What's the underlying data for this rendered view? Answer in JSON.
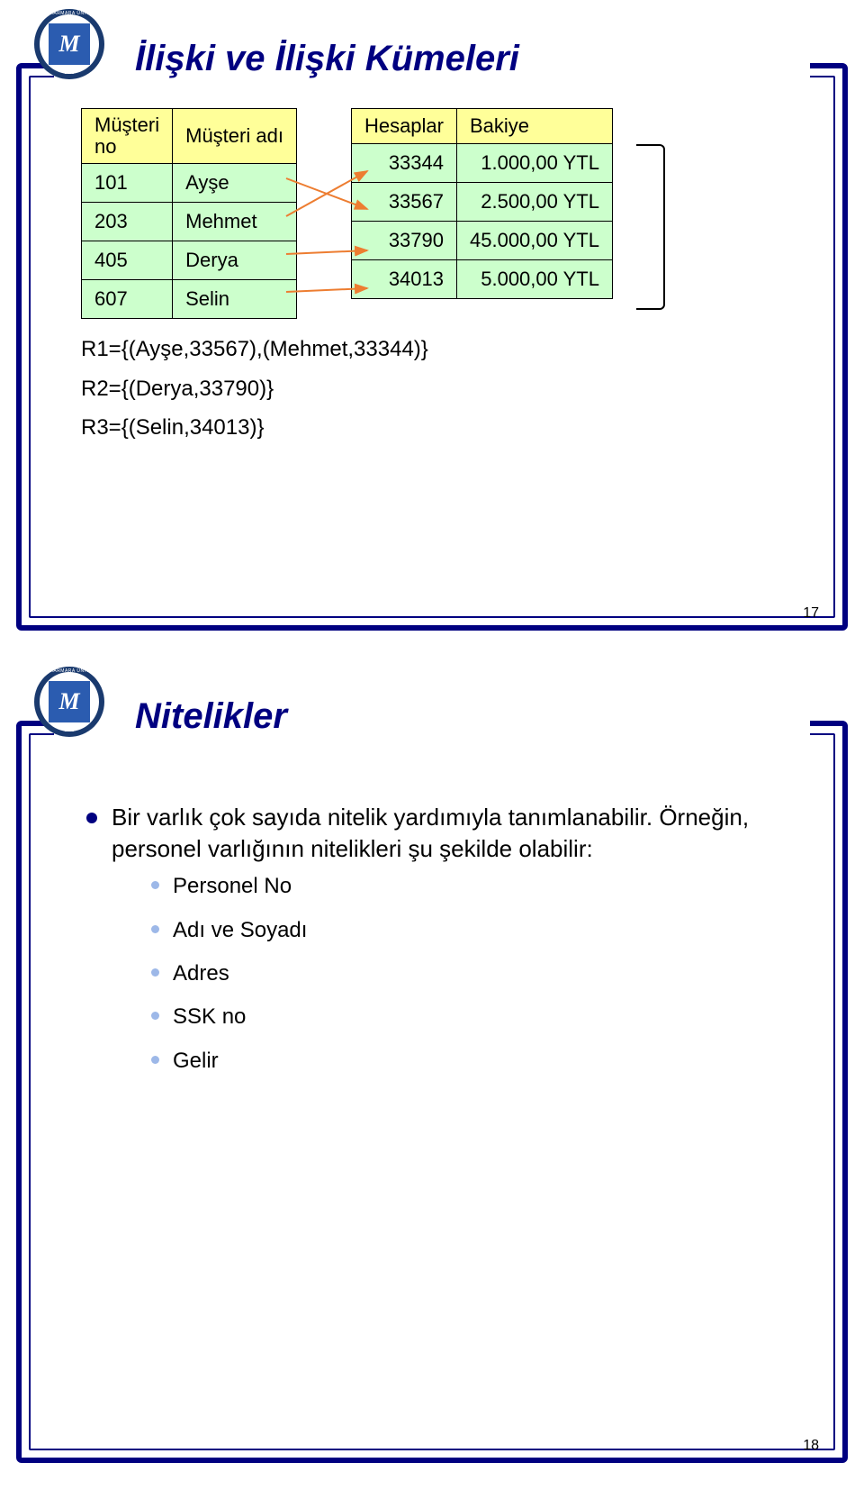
{
  "slide1": {
    "title": "İlişki ve İlişki Kümeleri",
    "page_num": "17",
    "table_left": {
      "headers": [
        "Müşteri\nno",
        "Müşteri adı"
      ],
      "rows": [
        [
          "101",
          "Ayşe"
        ],
        [
          "203",
          "Mehmet"
        ],
        [
          "405",
          "Derya"
        ],
        [
          "607",
          "Selin"
        ]
      ]
    },
    "table_right": {
      "headers": [
        "Hesaplar",
        "Bakiye"
      ],
      "rows": [
        [
          "33344",
          "1.000,00 YTL"
        ],
        [
          "33567",
          "2.500,00 YTL"
        ],
        [
          "33790",
          "45.000,00 YTL"
        ],
        [
          "34013",
          "5.000,00 YTL"
        ]
      ]
    },
    "relations": [
      "R1={(Ayşe,33567),(Mehmet,33344)}",
      "R2={(Derya,33790)}",
      "R3={(Selin,34013)}"
    ],
    "line_color": "#ed7d31",
    "line_width": 2
  },
  "slide2": {
    "title": "Nitelikler",
    "page_num": "18",
    "mainText": "Bir varlık çok sayıda nitelik yardımıyla tanımlanabilir. Örneğin, personel varlığının nitelikleri şu şekilde olabilir:",
    "items": [
      "Personel No",
      "Adı ve Soyadı",
      "Adres",
      "SSK no",
      "Gelir"
    ]
  },
  "colors": {
    "frame": "#000080",
    "table_header_bg": "#ffff99",
    "table_cell_bg": "#ccffcc",
    "sub_bullet": "#9db8e8"
  }
}
